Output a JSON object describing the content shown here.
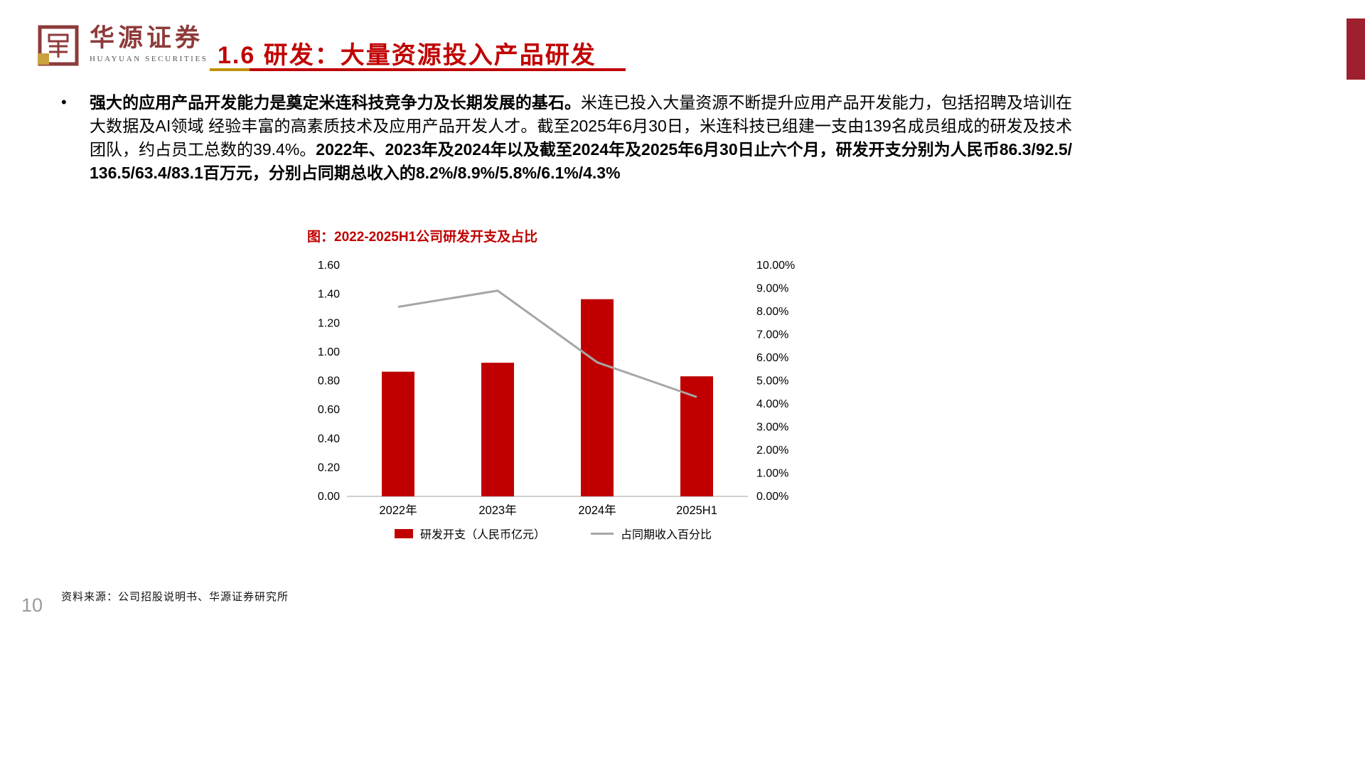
{
  "brand": {
    "name_cn": "华源证券",
    "name_en": "HUAYUAN SECURITIES"
  },
  "header": {
    "title": "1.6 研发：大量资源投入产品研发"
  },
  "body": {
    "bullet": "•",
    "segments": [
      {
        "text": "强大的应用产品开发能力是奠定米连科技竞争力及长期发展的基石。",
        "bold": true
      },
      {
        "text": "米连已投入大量资源不断提升应用产品开发能力，包括招聘及培训在大数据及AI领域 经验丰富的高素质技术及应用产品开发人才。截至2025年6月30日，米连科技已组建一支由139名成员组成的研发及技术团队，约占员工总数的39.4%。",
        "bold": false
      },
      {
        "text": "2022年、2023年及2024年以及截至2024年及2025年6月30日止六个月，研发开支分别为人民币86.3/92.5/136.5/63.4/83.1百万元，分别占同期总收入的8.2%/8.9%/5.8%/6.1%/4.3%",
        "bold": true
      }
    ]
  },
  "chart_data": {
    "type": "combo",
    "title": "图：2022-2025H1公司研发开支及占比",
    "categories": [
      "2022年",
      "2023年",
      "2024年",
      "2025H1"
    ],
    "series": [
      {
        "name": "研发开支（人民币亿元）",
        "type": "bar",
        "axis": "left",
        "values": [
          0.863,
          0.925,
          1.365,
          0.831
        ],
        "color": "#C00000"
      },
      {
        "name": "占同期收入百分比",
        "type": "line",
        "axis": "right",
        "values": [
          8.2,
          8.9,
          5.8,
          4.3
        ],
        "color": "#A6A6A6"
      }
    ],
    "left_axis": {
      "min": 0,
      "max": 1.6,
      "step": 0.2,
      "ticks": [
        "0.00",
        "0.20",
        "0.40",
        "0.60",
        "0.80",
        "1.00",
        "1.20",
        "1.40",
        "1.60"
      ]
    },
    "right_axis": {
      "min": 0,
      "max": 10,
      "step": 1,
      "ticks": [
        "0.00%",
        "1.00%",
        "2.00%",
        "3.00%",
        "4.00%",
        "5.00%",
        "6.00%",
        "7.00%",
        "8.00%",
        "9.00%",
        "10.00%"
      ]
    },
    "grid": false,
    "legend_position": "bottom"
  },
  "footer": {
    "source": "资料来源：公司招股说明书、华源证券研究所",
    "page_number": "10"
  },
  "colors": {
    "accent_red": "#C00000",
    "brand_maroon": "#8E3B3B",
    "gold": "#BF9000",
    "line_gray": "#A6A6A6",
    "axis_gray": "#BFBFBF"
  }
}
